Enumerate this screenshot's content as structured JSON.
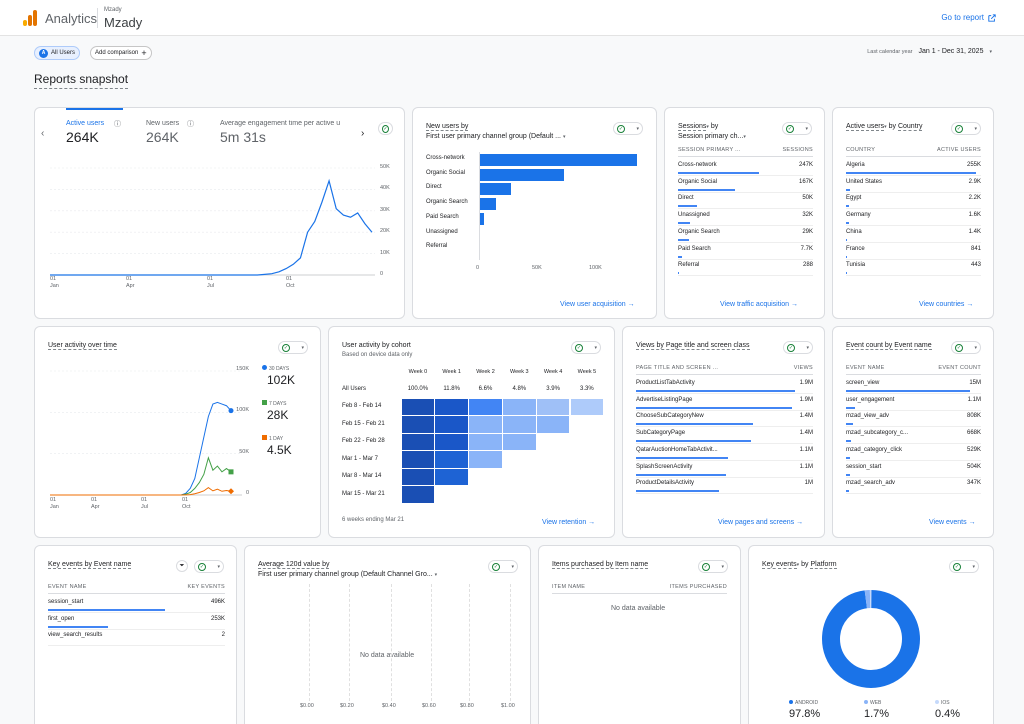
{
  "app": {
    "title": "Analytics",
    "account_small": "Mzady",
    "account_name": "Mzady",
    "goto": "Go to report"
  },
  "filters": {
    "all_users": "All Users",
    "avatar": "A",
    "add_comparison": "Add comparison",
    "date_label": "Last calendar year",
    "date_range": "Jan 1 - Dec 31, 2025"
  },
  "page_title": "Reports snapshot",
  "summary": {
    "metrics": [
      {
        "label": "Active users",
        "value": "264K"
      },
      {
        "label": "New users",
        "value": "264K"
      },
      {
        "label": "Average engagement time per active u",
        "value": "5m 31s"
      }
    ],
    "x_ticks": [
      {
        "d": "01",
        "m": "Jan"
      },
      {
        "d": "01",
        "m": "Apr"
      },
      {
        "d": "01",
        "m": "Jul"
      },
      {
        "d": "01",
        "m": "Oct"
      }
    ],
    "y_ticks": [
      "50K",
      "40K",
      "30K",
      "20K",
      "10K",
      "0"
    ]
  },
  "chart_data": [
    {
      "type": "line",
      "title": "Active users",
      "x_labels": [
        "01 Jan",
        "01 Apr",
        "01 Jul",
        "01 Oct"
      ],
      "y_ticks": [
        "0",
        "10K",
        "20K",
        "30K",
        "40K",
        "50K"
      ],
      "ylim": [
        0,
        50000
      ],
      "series": [
        {
          "name": "Active users",
          "values": [
            0,
            0,
            0,
            0,
            0,
            0,
            0,
            0,
            0,
            0,
            0,
            0,
            0,
            0,
            0,
            0,
            0,
            0,
            0,
            0,
            0,
            0,
            0,
            0,
            0,
            0,
            0,
            0,
            0,
            0,
            300,
            600,
            1500,
            3000,
            5000,
            8000,
            20000,
            25000,
            34000,
            44000,
            31000,
            28000,
            27000,
            29000,
            24000,
            20000
          ]
        }
      ]
    },
    {
      "type": "bar",
      "title": "New users by First user primary channel group (Default ...",
      "categories": [
        "Cross-network",
        "Organic Social",
        "Direct",
        "Organic Search",
        "Paid Search",
        "Unassigned",
        "Referral"
      ],
      "values": [
        140000,
        75000,
        28000,
        15000,
        4000,
        1000,
        500
      ],
      "x_ticks": [
        "0",
        "50K",
        "100K"
      ],
      "xlim": [
        0,
        140000
      ]
    },
    {
      "type": "line",
      "title": "User activity over time",
      "y_ticks": [
        "150K",
        "100K",
        "50K",
        "0"
      ],
      "x_labels": [
        "01 Jan",
        "01 Apr",
        "01 Jul",
        "01 Oct"
      ],
      "ylim": [
        0,
        150000
      ],
      "series": [
        {
          "name": "30 DAYS",
          "value": "102K",
          "color": "#1a73e8",
          "values": [
            0,
            0,
            0,
            0,
            0,
            0,
            0,
            0,
            0,
            0,
            0,
            0,
            0,
            0,
            0,
            0,
            0,
            0,
            0,
            0,
            0,
            0,
            0,
            0,
            0,
            0,
            0,
            0,
            0,
            0,
            2000,
            8000,
            20000,
            45000,
            70000,
            95000,
            110000,
            112000,
            110000,
            108000,
            102000
          ]
        },
        {
          "name": "7 DAYS",
          "value": "28K",
          "color": "#43a047",
          "values": [
            0,
            0,
            0,
            0,
            0,
            0,
            0,
            0,
            0,
            0,
            0,
            0,
            0,
            0,
            0,
            0,
            0,
            0,
            0,
            0,
            0,
            0,
            0,
            0,
            0,
            0,
            0,
            0,
            0,
            0,
            1000,
            3000,
            8000,
            15000,
            25000,
            45000,
            30000,
            35000,
            28000,
            32000,
            28000
          ]
        },
        {
          "name": "1 DAY",
          "value": "4.5K",
          "color": "#ef6c00",
          "values": [
            0,
            0,
            0,
            0,
            0,
            0,
            0,
            0,
            0,
            0,
            0,
            0,
            0,
            0,
            0,
            0,
            0,
            0,
            0,
            0,
            0,
            0,
            0,
            0,
            0,
            0,
            0,
            0,
            0,
            0,
            200,
            500,
            1500,
            3000,
            5000,
            9000,
            5000,
            7000,
            4500,
            5500,
            4500
          ]
        }
      ]
    },
    {
      "type": "heatmap",
      "title": "User activity by cohort",
      "columns": [
        "Week 0",
        "Week 1",
        "Week 2",
        "Week 3",
        "Week 4",
        "Week 5"
      ],
      "all_users": [
        "100.0%",
        "11.8%",
        "6.6%",
        "4.8%",
        "3.9%",
        "3.3%"
      ],
      "rows": [
        "Feb 8 - Feb 14",
        "Feb 15 - Feb 21",
        "Feb 22 - Feb 28",
        "Mar 1 - Mar 7",
        "Mar 8 - Mar 14",
        "Mar 15 - Mar 21"
      ],
      "filled": [
        6,
        5,
        4,
        3,
        2,
        1
      ]
    },
    {
      "type": "pie",
      "title": "Key events by Platform",
      "series": [
        {
          "name": "ANDROID",
          "value": 97.8,
          "color": "#1a73e8"
        },
        {
          "name": "WEB",
          "value": 1.7,
          "color": "#8ab4f8"
        },
        {
          "name": "IOS",
          "value": 0.4,
          "color": "#c5d9fb"
        }
      ]
    }
  ],
  "channel_card": {
    "title1": "New users by",
    "title2": "First user primary channel group (Default ...",
    "link": "View user acquisition"
  },
  "sessions_card": {
    "title_a": "Sessions",
    "title_b": "by",
    "title2": "Session primary ch...",
    "col1": "SESSION PRIMARY ...",
    "col2": "SESSIONS",
    "rows": [
      {
        "name": "Cross-network",
        "value": "247K",
        "pct": 60
      },
      {
        "name": "Organic Social",
        "value": "167K",
        "pct": 42
      },
      {
        "name": "Direct",
        "value": "50K",
        "pct": 14
      },
      {
        "name": "Unassigned",
        "value": "32K",
        "pct": 9
      },
      {
        "name": "Organic Search",
        "value": "29K",
        "pct": 8
      },
      {
        "name": "Paid Search",
        "value": "7.7K",
        "pct": 3
      },
      {
        "name": "Referral",
        "value": "288",
        "pct": 1
      }
    ],
    "link": "View traffic acquisition"
  },
  "country_card": {
    "title_a": "Active users",
    "title_b": "by",
    "title_c": "Country",
    "col1": "COUNTRY",
    "col2": "ACTIVE USERS",
    "rows": [
      {
        "name": "Algeria",
        "value": "255K",
        "pct": 96
      },
      {
        "name": "United States",
        "value": "2.9K",
        "pct": 3
      },
      {
        "name": "Egypt",
        "value": "2.2K",
        "pct": 2
      },
      {
        "name": "Germany",
        "value": "1.6K",
        "pct": 2
      },
      {
        "name": "China",
        "value": "1.4K",
        "pct": 1
      },
      {
        "name": "France",
        "value": "841",
        "pct": 1
      },
      {
        "name": "Tunisia",
        "value": "443",
        "pct": 1
      }
    ],
    "link": "View countries"
  },
  "activity_card": {
    "title": "User activity over time"
  },
  "cohort_card": {
    "title": "User activity by cohort",
    "subtitle": "Based on device data only",
    "footer": "6 weeks ending Mar 21",
    "all_label": "All Users",
    "link": "View retention"
  },
  "pages_card": {
    "title": "Views by Page title and screen class",
    "col1": "PAGE TITLE AND SCREEN ...",
    "col2": "VIEWS",
    "rows": [
      {
        "name": "ProductListTabActivity",
        "value": "1.9M",
        "pct": 90
      },
      {
        "name": "AdvertiseListingPage",
        "value": "1.9M",
        "pct": 88
      },
      {
        "name": "ChooseSubCategoryNew",
        "value": "1.4M",
        "pct": 66
      },
      {
        "name": "SubCategoryPage",
        "value": "1.4M",
        "pct": 65
      },
      {
        "name": "QatarAuctionHomeTabActivit...",
        "value": "1.1M",
        "pct": 52
      },
      {
        "name": "SplashScreenActivity",
        "value": "1.1M",
        "pct": 51
      },
      {
        "name": "ProductDetailsActivity",
        "value": "1M",
        "pct": 47
      }
    ],
    "link": "View pages and screens"
  },
  "events_card": {
    "title": "Event count by Event name",
    "col1": "EVENT NAME",
    "col2": "EVENT COUNT",
    "rows": [
      {
        "name": "screen_view",
        "value": "15M",
        "pct": 92
      },
      {
        "name": "user_engagement",
        "value": "1.1M",
        "pct": 7
      },
      {
        "name": "mzad_view_adv",
        "value": "808K",
        "pct": 5
      },
      {
        "name": "mzad_subcategory_c...",
        "value": "668K",
        "pct": 4
      },
      {
        "name": "mzad_category_click",
        "value": "529K",
        "pct": 3
      },
      {
        "name": "session_start",
        "value": "504K",
        "pct": 3
      },
      {
        "name": "mzad_search_adv",
        "value": "347K",
        "pct": 2
      }
    ],
    "link": "View events"
  },
  "keyevents_card": {
    "title": "Key events by Event name",
    "col1": "EVENT NAME",
    "col2": "KEY EVENTS",
    "rows": [
      {
        "name": "session_start",
        "value": "496K",
        "pct": 66
      },
      {
        "name": "first_open",
        "value": "253K",
        "pct": 34
      },
      {
        "name": "view_search_results",
        "value": "2",
        "pct": 0
      }
    ]
  },
  "avg_card": {
    "title1": "Average 120d value by",
    "title2": "First user primary channel group (Default Channel Gro...",
    "nodata": "No data available",
    "x_ticks": [
      "$0.00",
      "$0.20",
      "$0.40",
      "$0.60",
      "$0.80",
      "$1.00"
    ]
  },
  "items_card": {
    "title": "Items purchased by Item name",
    "col1": "ITEM NAME",
    "col2": "ITEMS PURCHASED",
    "nodata": "No data available"
  },
  "platform_card": {
    "title_a": "Key events",
    "title_b": "by",
    "title_c": "Platform"
  }
}
